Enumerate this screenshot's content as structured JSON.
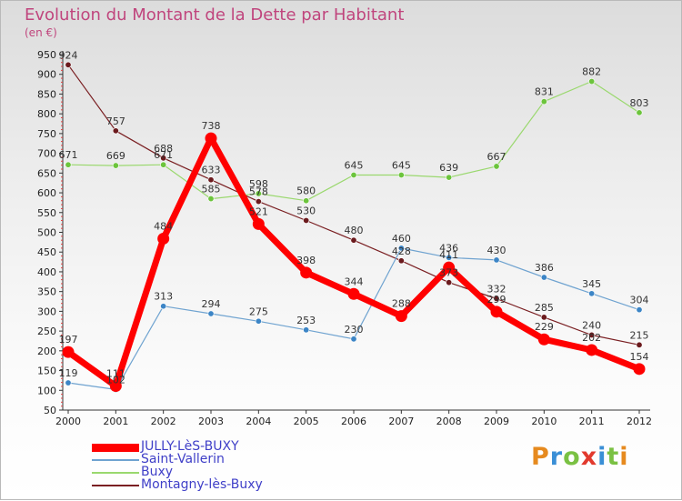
{
  "header": {
    "title": "Evolution du Montant de la Dette par Habitant",
    "unit": "(en €)"
  },
  "logo": {
    "text": "Proxiti",
    "colors": [
      "#e68a1f",
      "#3a8fd6",
      "#7ac143",
      "#e23a2e",
      "#3a8fd6",
      "#7ac143",
      "#e68a1f"
    ]
  },
  "chart_data": {
    "type": "line",
    "title": "Evolution du Montant de la Dette par Habitant",
    "ylabel": "(en €)",
    "xlabel": "",
    "x": [
      "2000",
      "2001",
      "2002",
      "2003",
      "2004",
      "2005",
      "2006",
      "2007",
      "2008",
      "2009",
      "2010",
      "2011",
      "2012"
    ],
    "ylim": [
      50,
      950
    ],
    "yticks": [
      50,
      100,
      150,
      200,
      250,
      300,
      350,
      400,
      450,
      500,
      550,
      600,
      650,
      700,
      750,
      800,
      850,
      900,
      950
    ],
    "grid": "none",
    "legend_position": "bottom-left",
    "series": [
      {
        "name": "Montagny-lès-Buxy",
        "color": "#7a1f22",
        "marker_color": "#6b1a1d",
        "line_width": 1.2,
        "marker_radius": 3.2,
        "values": [
          924,
          757,
          688,
          633,
          578,
          530,
          480,
          428,
          373,
          332,
          285,
          240,
          215
        ],
        "labels": [
          "924",
          "757",
          "688",
          "633",
          "578",
          "530",
          "480",
          "428",
          "373",
          "332",
          "285",
          "240",
          "215"
        ]
      },
      {
        "name": "Buxy",
        "color": "#9ad86e",
        "marker_color": "#6cc43c",
        "line_width": 1.2,
        "marker_radius": 3.2,
        "values": [
          671,
          669,
          671,
          585,
          598,
          580,
          645,
          645,
          639,
          667,
          831,
          882,
          803
        ],
        "labels": [
          "671",
          "669",
          "671",
          "585",
          "598",
          "580",
          "645",
          "645",
          "639",
          "667",
          "831",
          "882",
          "803"
        ]
      },
      {
        "name": "Saint-Vallerin",
        "color": "#6fa3d0",
        "marker_color": "#3c85c6",
        "line_width": 1.2,
        "marker_radius": 3.2,
        "values": [
          119,
          102,
          313,
          294,
          275,
          253,
          230,
          460,
          436,
          430,
          386,
          345,
          304
        ],
        "labels": [
          "119",
          "102",
          "313",
          "294",
          "275",
          "253",
          "230",
          "460",
          "436",
          "430",
          "386",
          "345",
          "304"
        ]
      },
      {
        "name": "JULLY-LèS-BUXY",
        "color": "#ff0000",
        "marker_color": "#ff0000",
        "line_width": 7,
        "marker_radius": 6.5,
        "values": [
          197,
          111,
          484,
          738,
          521,
          398,
          344,
          288,
          411,
          299,
          229,
          202,
          154
        ],
        "labels": [
          "197",
          "111",
          "484",
          "738",
          "521",
          "398",
          "344",
          "288",
          "411",
          "299",
          "229",
          "202",
          "154"
        ]
      }
    ]
  },
  "legend": {
    "items": [
      {
        "label": "JULLY-LèS-BUXY",
        "color": "#ff0000",
        "thickness": 9
      },
      {
        "label": "Saint-Vallerin",
        "color": "#6fa3d0",
        "thickness": 2
      },
      {
        "label": "Buxy",
        "color": "#9ad86e",
        "thickness": 2
      },
      {
        "label": "Montagny-lès-Buxy",
        "color": "#7a1f22",
        "thickness": 2
      }
    ]
  }
}
